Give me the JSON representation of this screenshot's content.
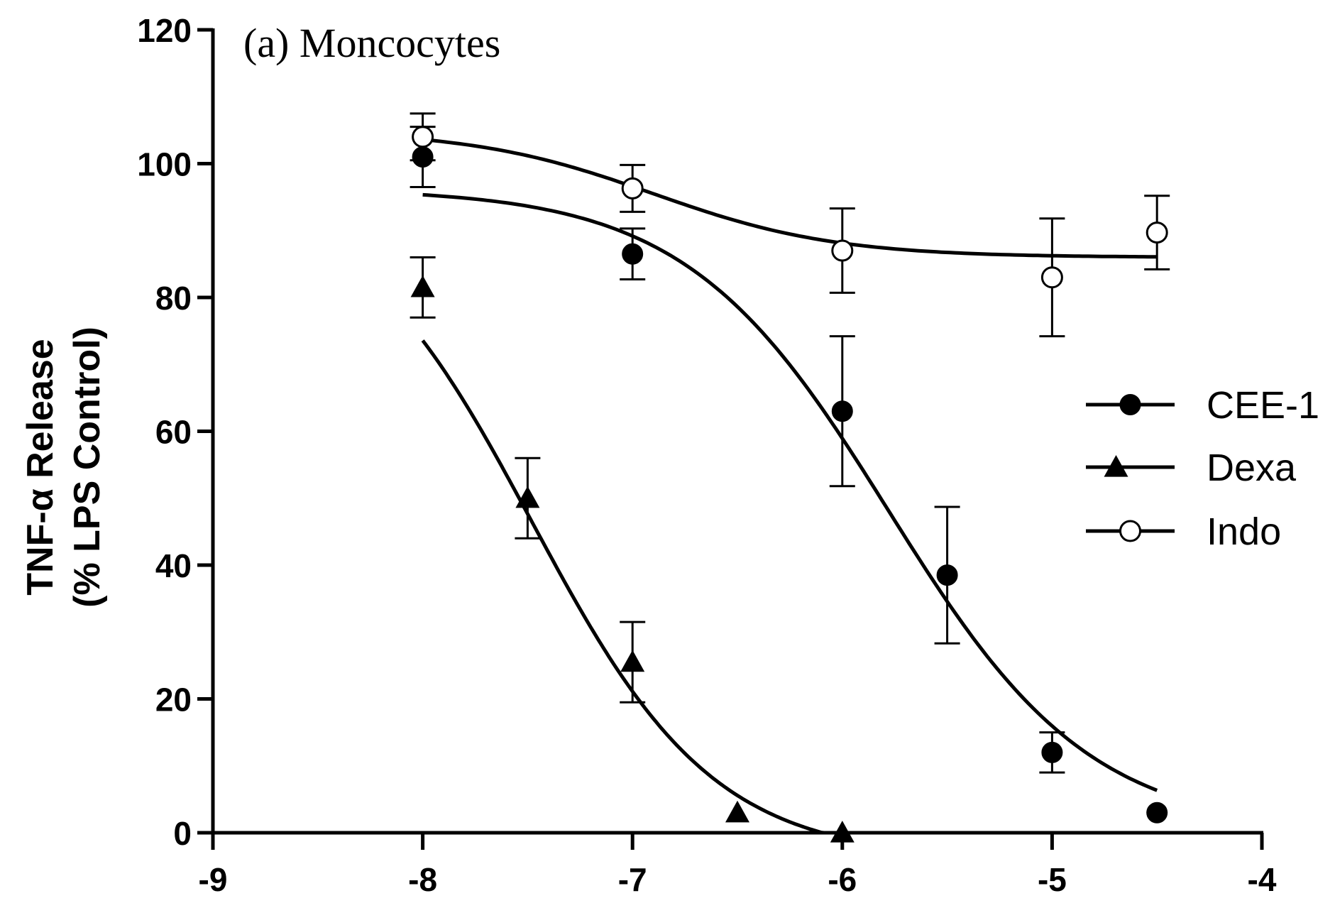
{
  "chart_data": {
    "type": "scatter",
    "title": "(a) Moncocytes",
    "ylabel_line1": "TNF-α Release",
    "ylabel_line2": "(% LPS Control)",
    "xlabel": "",
    "xlim": [
      -9,
      -4
    ],
    "ylim": [
      0,
      120
    ],
    "xticks": [
      -9,
      -8,
      -7,
      -6,
      -5,
      -4
    ],
    "yticks": [
      0,
      20,
      40,
      60,
      80,
      100,
      120
    ],
    "legend_position": "right",
    "series": [
      {
        "name": "CEE-1",
        "marker": "filled-circle",
        "x": [
          -8,
          -7,
          -6,
          -5.5,
          -5,
          -4.5
        ],
        "y": [
          101,
          86.5,
          63,
          38.5,
          12,
          3
        ],
        "err": [
          4.5,
          3.8,
          11.2,
          10.2,
          3,
          0
        ],
        "fit": {
          "top": 96.3,
          "bottom": 0,
          "logIC50": -5.78,
          "hill": 0.9
        }
      },
      {
        "name": "Dexa",
        "marker": "filled-triangle",
        "x": [
          -8,
          -7.5,
          -7,
          -6.5,
          -6
        ],
        "y": [
          81.5,
          50,
          25.5,
          3,
          0
        ],
        "err": [
          4.5,
          6,
          6,
          0,
          0
        ],
        "fit": {
          "top": 97,
          "bottom": -4,
          "logIC50": -7.48,
          "hill": 1.0
        }
      },
      {
        "name": "Indo",
        "marker": "open-circle",
        "x": [
          -8,
          -7,
          -6,
          -5,
          -4.5
        ],
        "y": [
          104,
          96.3,
          87,
          83,
          89.7
        ],
        "err": [
          3.5,
          3.5,
          6.3,
          8.8,
          5.5
        ],
        "fit": {
          "top": 105,
          "bottom": 86,
          "logIC50": -6.9,
          "hill": 1.0
        }
      }
    ]
  }
}
